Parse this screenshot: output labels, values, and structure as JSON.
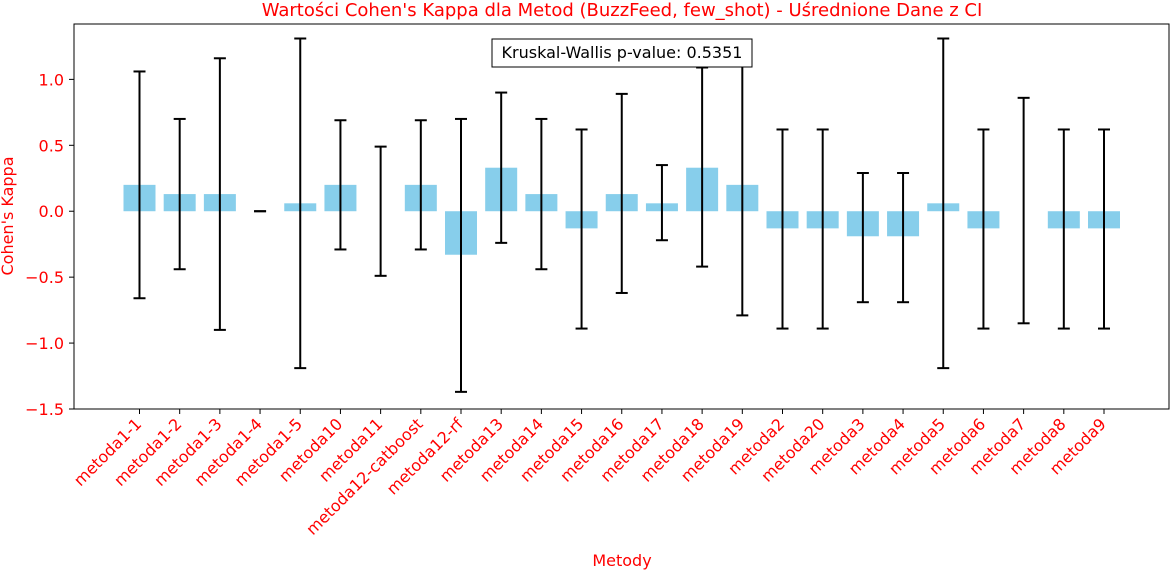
{
  "chart_data": {
    "type": "bar",
    "title": "Wartości Cohen's Kappa dla Metod (BuzzFeed, few_shot) - Uśrednione Dane z CI",
    "xlabel": "Metody",
    "ylabel": "Cohen's Kappa",
    "ylim": [
      -1.5,
      1.42
    ],
    "yticks": [
      "−1.5",
      "−1.0",
      "−0.5",
      "0.0",
      "0.5",
      "1.0"
    ],
    "annotation": "Kruskal-Wallis p-value: 0.5351",
    "categories": [
      "metoda1-1",
      "metoda1-2",
      "metoda1-3",
      "metoda1-4",
      "metoda1-5",
      "metoda10",
      "metoda11",
      "metoda12-catboost",
      "metoda12-rf",
      "metoda13",
      "metoda14",
      "metoda15",
      "metoda16",
      "metoda17",
      "metoda18",
      "metoda19",
      "metoda2",
      "metoda20",
      "metoda3",
      "metoda4",
      "metoda5",
      "metoda6",
      "metoda7",
      "metoda8",
      "metoda9"
    ],
    "values": [
      0.2,
      0.13,
      0.13,
      0.0,
      0.06,
      0.2,
      0.0,
      0.2,
      -0.33,
      0.33,
      0.13,
      -0.13,
      0.13,
      0.06,
      0.33,
      0.2,
      -0.13,
      -0.13,
      -0.19,
      -0.19,
      0.06,
      -0.13,
      0.0,
      -0.13,
      -0.13
    ],
    "ci_lower": [
      -0.66,
      -0.44,
      -0.9,
      0.0,
      -1.19,
      -0.29,
      -0.49,
      -0.29,
      -1.37,
      -0.24,
      -0.44,
      -0.89,
      -0.62,
      -0.22,
      -0.42,
      -0.79,
      -0.89,
      -0.89,
      -0.69,
      -0.69,
      -1.19,
      -0.89,
      -0.85,
      -0.89,
      -0.89
    ],
    "ci_upper": [
      1.06,
      0.7,
      1.16,
      0.0,
      1.31,
      0.69,
      0.49,
      0.69,
      0.7,
      0.9,
      0.7,
      0.62,
      0.89,
      0.35,
      1.09,
      1.19,
      0.62,
      0.62,
      0.29,
      0.29,
      1.31,
      0.62,
      0.86,
      0.62,
      0.62
    ],
    "grid": false,
    "colors": {
      "bar": "#87CEEB",
      "error": "#000000",
      "text": "#ff0000",
      "axis": "#000000"
    }
  }
}
